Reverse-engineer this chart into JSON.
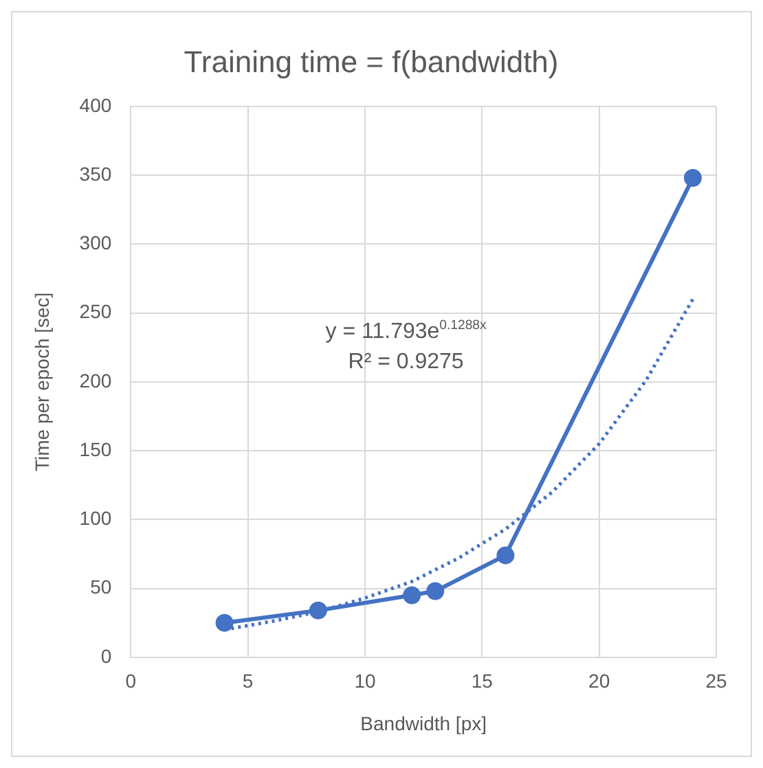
{
  "chart_data": {
    "type": "line",
    "title": "Training time = f(bandwidth)",
    "xlabel": "Bandwidth [px]",
    "ylabel": "Time per epoch [sec]",
    "xlim": [
      0,
      25
    ],
    "xticks": [
      0,
      5,
      10,
      15,
      20,
      25
    ],
    "ylim": [
      0,
      400
    ],
    "yticks": [
      0,
      50,
      100,
      150,
      200,
      250,
      300,
      350,
      400
    ],
    "grid": true,
    "legend": false,
    "series": [
      {
        "color": "#4472c4",
        "x": [
          4,
          8,
          12,
          13,
          16,
          24
        ],
        "values": [
          25,
          34,
          45,
          48,
          74,
          348
        ],
        "marker": "circle",
        "line_style": "solid"
      },
      {
        "type": "line",
        "color": "#4472c4",
        "x": [
          4,
          6,
          8,
          10,
          12,
          14,
          16,
          18,
          20,
          22,
          24
        ],
        "values": [
          20,
          26,
          33,
          43,
          55,
          72,
          93,
          120,
          155,
          201,
          260
        ],
        "marker": "none",
        "line_style": "dotted"
      }
    ],
    "annotations": [
      "y = 11.793e$^{0.1288x}$",
      "R² = 0.9275"
    ]
  }
}
